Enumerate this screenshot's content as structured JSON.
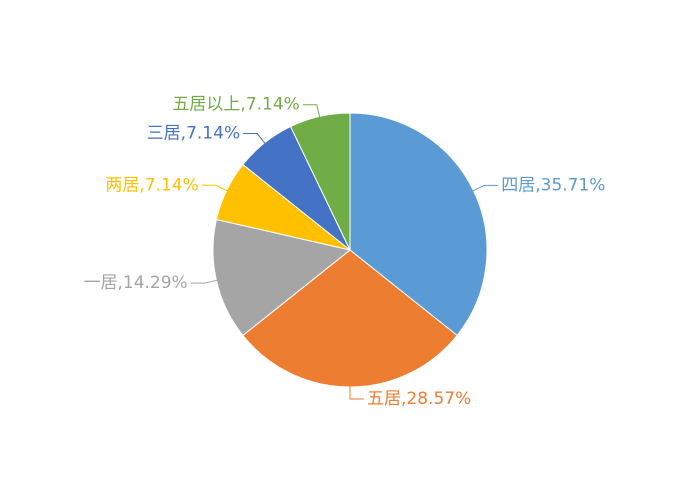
{
  "chart_data": {
    "type": "pie",
    "values": [
      35.71,
      28.57,
      14.29,
      7.14,
      7.14,
      7.14
    ],
    "value_labels": [
      "四居,35.71%",
      "五居,28.57%",
      "一居,14.29%",
      "两居,7.14%",
      "三居,7.14%",
      "五居以上,7.14%"
    ],
    "colors": [
      "#5b9bd5",
      "#ed7d31",
      "#a5a5a5",
      "#ffc000",
      "#4472c4",
      "#70ad47"
    ]
  }
}
